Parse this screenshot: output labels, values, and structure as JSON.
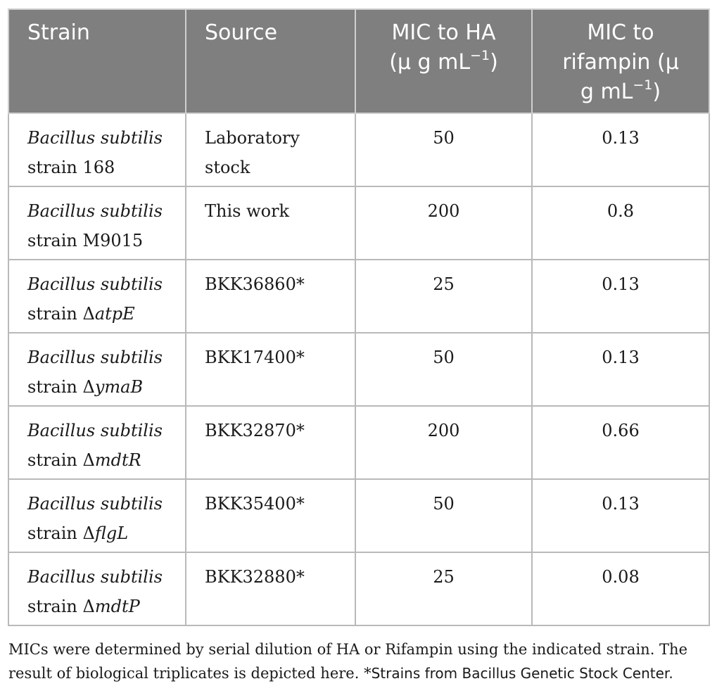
{
  "table": {
    "headers": {
      "strain": "Strain",
      "source": "Source",
      "mic_ha": [
        "MIC to HA",
        "(μ g mL",
        "−1",
        ")"
      ],
      "mic_rif": [
        "MIC to",
        "rifampin (μ",
        "g mL",
        "−1",
        ")"
      ]
    },
    "rows": [
      {
        "genus": "Bacillus subtilis",
        "strain_prefix": "strain 168",
        "strain_gene": "",
        "source": [
          "Laboratory",
          "stock"
        ],
        "mic_ha": "50",
        "mic_rif": "0.13"
      },
      {
        "genus": "Bacillus subtilis",
        "strain_prefix": "strain M9015",
        "strain_gene": "",
        "source": [
          "This work"
        ],
        "mic_ha": "200",
        "mic_rif": "0.8"
      },
      {
        "genus": "Bacillus subtilis",
        "strain_prefix": "strain Δ",
        "strain_gene": "atpE",
        "source": [
          "BKK36860*"
        ],
        "mic_ha": "25",
        "mic_rif": "0.13"
      },
      {
        "genus": "Bacillus subtilis",
        "strain_prefix": "strain Δ",
        "strain_gene": "ymaB",
        "source": [
          "BKK17400*"
        ],
        "mic_ha": "50",
        "mic_rif": "0.13"
      },
      {
        "genus": "Bacillus subtilis",
        "strain_prefix": "strain Δ",
        "strain_gene": "mdtR",
        "source": [
          "BKK32870*"
        ],
        "mic_ha": "200",
        "mic_rif": "0.66"
      },
      {
        "genus": "Bacillus subtilis",
        "strain_prefix": "strain Δ",
        "strain_gene": "flgL",
        "source": [
          "BKK35400*"
        ],
        "mic_ha": "50",
        "mic_rif": "0.13"
      },
      {
        "genus": "Bacillus subtilis",
        "strain_prefix": "strain Δ",
        "strain_gene": "mdtP",
        "source": [
          "BKK32880*"
        ],
        "mic_ha": "25",
        "mic_rif": "0.08"
      }
    ]
  },
  "footnote": {
    "text": "MICs were determined by serial dilution of HA or Rifampin using the indicated strain. The result of biological triplicates is depicted here. *",
    "sans_part": "Strains from Bacillus Genetic Stock Center."
  }
}
